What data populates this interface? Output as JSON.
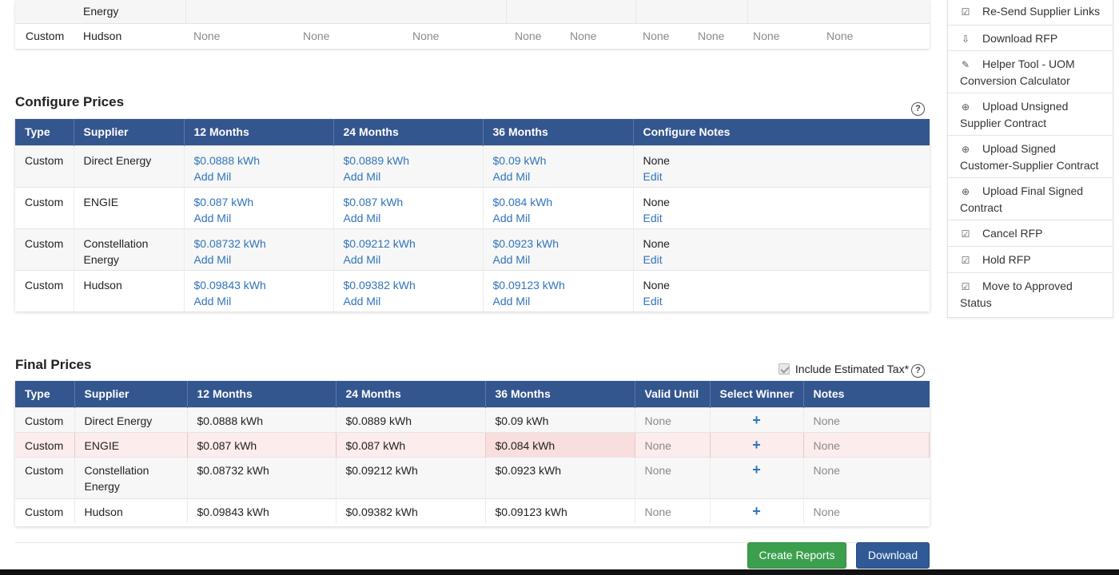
{
  "top_table": {
    "row1": {
      "supplier_tail": "Energy"
    },
    "row2": {
      "type": "Custom",
      "supplier": "Hudson",
      "values": [
        "None",
        "None",
        "None",
        "None",
        "None",
        "None",
        "None",
        "None",
        "None"
      ]
    }
  },
  "configure": {
    "title": "Configure Prices",
    "help": "?",
    "headers": [
      "Type",
      "Supplier",
      "12 Months",
      "24 Months",
      "36 Months",
      "Configure Notes"
    ],
    "rows": [
      {
        "type": "Custom",
        "supplier": "Direct Energy",
        "m12": "$0.0888 kWh",
        "m24": "$0.0889 kWh",
        "m36": "$0.09 kWh",
        "note": "None"
      },
      {
        "type": "Custom",
        "supplier": "ENGIE",
        "m12": "$0.087 kWh",
        "m24": "$0.087 kWh",
        "m36": "$0.084 kWh",
        "note": "None"
      },
      {
        "type": "Custom",
        "supplier": "Constellation Energy",
        "m12": "$0.08732 kWh",
        "m24": "$0.09212 kWh",
        "m36": "$0.0923 kWh",
        "note": "None"
      },
      {
        "type": "Custom",
        "supplier": "Hudson",
        "m12": "$0.09843 kWh",
        "m24": "$0.09382 kWh",
        "m36": "$0.09123 kWh",
        "note": "None"
      }
    ],
    "add_mil": "Add Mil",
    "edit": "Edit"
  },
  "final": {
    "title": "Final Prices",
    "include_tax_label": "Include Estimated Tax*",
    "help": "?",
    "headers": [
      "Type",
      "Supplier",
      "12 Months",
      "24 Months",
      "36 Months",
      "Valid Until",
      "Select Winner",
      "Notes"
    ],
    "rows": [
      {
        "type": "Custom",
        "supplier": "Direct Energy",
        "m12": "$0.0888 kWh",
        "m24": "$0.0889 kWh",
        "m36": "$0.09 kWh",
        "valid": "None",
        "winner": "+",
        "notes": "None"
      },
      {
        "type": "Custom",
        "supplier": "ENGIE",
        "m12": "$0.087 kWh",
        "m24": "$0.087 kWh",
        "m36": "$0.084 kWh",
        "valid": "None",
        "winner": "+",
        "notes": "None"
      },
      {
        "type": "Custom",
        "supplier": "Constellation Energy",
        "m12": "$0.08732 kWh",
        "m24": "$0.09212 kWh",
        "m36": "$0.0923 kWh",
        "valid": "None",
        "winner": "+",
        "notes": "None"
      },
      {
        "type": "Custom",
        "supplier": "Hudson",
        "m12": "$0.09843 kWh",
        "m24": "$0.09382 kWh",
        "m36": "$0.09123 kWh",
        "valid": "None",
        "winner": "+",
        "notes": "None"
      }
    ]
  },
  "buttons": {
    "create_reports": "Create Reports",
    "download": "Download"
  },
  "sidebar": {
    "items": [
      {
        "label": "Re-Send Supplier Links",
        "icon": "checkbox-icon"
      },
      {
        "label": "Download RFP",
        "icon": "download-icon"
      },
      {
        "label": "Helper Tool - UOM Conversion Calculator",
        "icon": "pencil-icon"
      },
      {
        "label": "Upload Unsigned Supplier Contract",
        "icon": "upload-icon"
      },
      {
        "label": "Upload Signed Customer-Supplier Contract",
        "icon": "upload-icon"
      },
      {
        "label": "Upload Final Signed Contract",
        "icon": "upload-icon"
      },
      {
        "label": "Cancel RFP",
        "icon": "checkbox-icon"
      },
      {
        "label": "Hold RFP",
        "icon": "checkbox-icon"
      },
      {
        "label": "Move to Approved Status",
        "icon": "checkbox-icon"
      }
    ]
  }
}
